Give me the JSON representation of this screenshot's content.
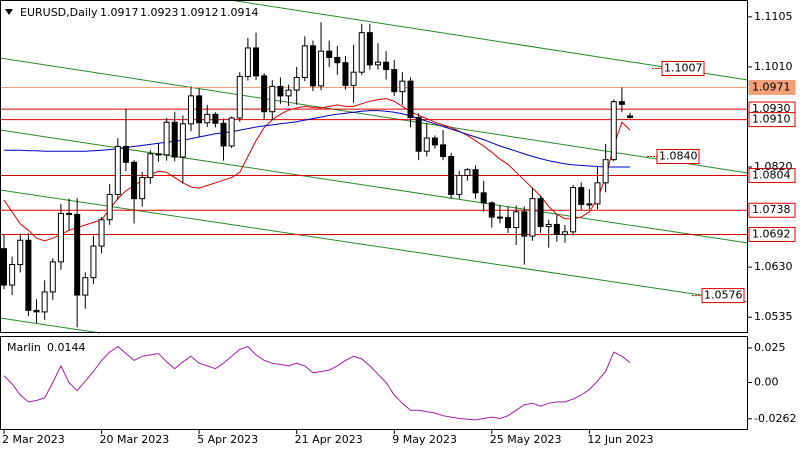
{
  "chart_data": [
    {
      "type": "candlestick",
      "symbol": "EURUSD,Daily",
      "categories": [
        "2 Mar 2023",
        null,
        null,
        null,
        null,
        null,
        null,
        null,
        null,
        null,
        null,
        null,
        "20 Mar 2023",
        null,
        null,
        null,
        null,
        null,
        null,
        null,
        null,
        null,
        null,
        null,
        "5 Apr 2023",
        null,
        null,
        null,
        null,
        null,
        null,
        null,
        null,
        null,
        null,
        null,
        "21 Apr 2023",
        null,
        null,
        null,
        null,
        null,
        null,
        null,
        null,
        null,
        null,
        null,
        "9 May 2023",
        null,
        null,
        null,
        null,
        null,
        null,
        null,
        null,
        null,
        null,
        null,
        "25 May 2023",
        null,
        null,
        null,
        null,
        null,
        null,
        null,
        null,
        null,
        null,
        null,
        "12 Jun 2023",
        null,
        null,
        null,
        null,
        null
      ],
      "open": [
        1.0665,
        1.0596,
        1.0635,
        1.0681,
        1.0548,
        1.0545,
        1.0583,
        1.064,
        1.0732,
        1.073,
        1.0577,
        1.061,
        1.067,
        1.072,
        1.0768,
        1.0859,
        1.0829,
        1.076,
        1.08,
        1.0845,
        1.0843,
        1.0905,
        1.0839,
        1.0902,
        1.0955,
        1.0904,
        1.092,
        1.0903,
        1.086,
        1.0913,
        1.0992,
        1.1046,
        1.0993,
        1.0925,
        1.0973,
        1.0955,
        1.0966,
        1.099,
        1.105,
        1.0974,
        1.104,
        1.1028,
        1.1018,
        1.0975,
        1.1,
        1.1075,
        1.1014,
        1.1019,
        1.1005,
        1.0963,
        1.0983,
        1.0914,
        1.085,
        1.0875,
        1.0862,
        1.084,
        1.0768,
        1.0804,
        1.0815,
        1.0771,
        1.0752,
        1.0725,
        1.0724,
        1.0705,
        1.0735,
        1.0689,
        1.076,
        1.0707,
        1.0711,
        1.0692,
        1.0697,
        1.0781,
        1.0749,
        1.075,
        1.079,
        1.0834,
        1.0944,
        1.0917
      ],
      "high": [
        1.0691,
        1.065,
        1.0694,
        1.0695,
        1.0569,
        1.0605,
        1.0647,
        1.075,
        1.076,
        1.0761,
        1.062,
        1.069,
        1.0725,
        1.0788,
        1.0875,
        1.093,
        1.0833,
        1.0811,
        1.0852,
        1.0865,
        1.0913,
        1.0925,
        1.0918,
        1.0973,
        1.0969,
        1.0938,
        1.0924,
        1.0912,
        1.0916,
        1.1,
        1.1065,
        1.1075,
        1.0998,
        1.0985,
        1.099,
        1.0976,
        1.101,
        1.1068,
        1.106,
        1.1095,
        1.106,
        1.105,
        1.1031,
        1.1052,
        1.1092,
        1.1092,
        1.1055,
        1.104,
        1.1023,
        1.1,
        1.099,
        1.0922,
        1.0904,
        1.088,
        1.089,
        1.0847,
        1.0813,
        1.0818,
        1.0823,
        1.0794,
        1.0755,
        1.0748,
        1.0745,
        1.0747,
        1.0745,
        1.078,
        1.0765,
        1.072,
        1.073,
        1.071,
        1.0786,
        1.0791,
        1.0778,
        1.0822,
        1.0864,
        1.0948,
        1.0971,
        1.0923
      ],
      "low": [
        1.0588,
        1.0577,
        1.062,
        1.0537,
        1.0524,
        1.053,
        1.0568,
        1.0625,
        1.07,
        1.0516,
        1.0551,
        1.0598,
        1.0656,
        1.071,
        1.0758,
        1.0812,
        1.0713,
        1.0745,
        1.0788,
        1.083,
        1.0832,
        1.0831,
        1.0789,
        1.0888,
        1.0878,
        1.0896,
        1.0895,
        1.0832,
        1.0856,
        1.0906,
        1.0984,
        1.0985,
        1.091,
        1.0909,
        1.094,
        1.0936,
        1.0938,
        1.0983,
        1.0964,
        1.0966,
        1.101,
        1.0995,
        1.0967,
        1.0942,
        1.0994,
        1.1005,
        1.1005,
        1.0986,
        1.0955,
        1.0938,
        1.0896,
        1.0833,
        1.084,
        1.0855,
        1.0833,
        1.076,
        1.076,
        1.0794,
        1.076,
        1.0735,
        1.0705,
        1.0713,
        1.0695,
        1.0672,
        1.0635,
        1.068,
        1.0695,
        1.0667,
        1.0678,
        1.0676,
        1.069,
        1.0739,
        1.074,
        1.074,
        1.0772,
        1.0831,
        1.0924,
        1.0912
      ],
      "close": [
        1.0596,
        1.0635,
        1.0681,
        1.0548,
        1.0545,
        1.0583,
        1.064,
        1.0732,
        1.073,
        1.0577,
        1.061,
        1.067,
        1.072,
        1.0768,
        1.0859,
        1.0829,
        1.076,
        1.08,
        1.0845,
        1.0843,
        1.0905,
        1.0839,
        1.0902,
        1.0955,
        1.0904,
        1.092,
        1.0903,
        1.086,
        1.0913,
        1.0992,
        1.1046,
        1.0993,
        1.0925,
        1.0973,
        1.0955,
        1.0966,
        1.099,
        1.105,
        1.0974,
        1.104,
        1.1028,
        1.1018,
        1.0975,
        1.1,
        1.1075,
        1.1014,
        1.1019,
        1.1005,
        1.0963,
        1.0983,
        1.0914,
        1.085,
        1.0875,
        1.0862,
        1.084,
        1.0768,
        1.0804,
        1.0815,
        1.0771,
        1.0752,
        1.0725,
        1.0724,
        1.0705,
        1.0735,
        1.0689,
        1.076,
        1.0707,
        1.0711,
        1.0692,
        1.0697,
        1.0781,
        1.0749,
        1.075,
        1.079,
        1.0834,
        1.0944,
        1.0939,
        1.0914
      ],
      "lines": [
        {
          "color": "#e00000",
          "values": [
            1.0757,
            1.0735,
            1.0712,
            1.07,
            1.0685,
            1.068,
            1.0685,
            1.0692,
            1.07,
            1.0705,
            1.071,
            1.0715,
            1.072,
            1.074,
            1.076,
            1.0775,
            1.0785,
            1.0795,
            1.0805,
            1.0812,
            1.081,
            1.08,
            1.079,
            1.0782,
            1.078,
            1.0785,
            1.079,
            1.0795,
            1.08,
            1.081,
            1.084,
            1.087,
            1.0895,
            1.091,
            1.092,
            1.0928,
            1.0932,
            1.0935,
            1.0933,
            1.0932,
            1.0935,
            1.0938,
            1.0935,
            1.0935,
            1.094,
            1.0945,
            1.0948,
            1.095,
            1.0945,
            1.0935,
            1.0925,
            1.0918,
            1.0912,
            1.0905,
            1.09,
            1.0895,
            1.0888,
            1.088,
            1.087,
            1.086,
            1.0848,
            1.0835,
            1.0825,
            1.081,
            1.0795,
            1.078,
            1.0765,
            1.0745,
            1.073,
            1.0722,
            1.0722,
            1.0725,
            1.0735,
            1.076,
            1.08,
            1.086,
            1.0905,
            1.089
          ]
        },
        {
          "color": "#0000c0",
          "values": [
            1.0852,
            1.0852,
            1.0852,
            1.0851,
            1.0851,
            1.085,
            1.085,
            1.085,
            1.085,
            1.085,
            1.085,
            1.0851,
            1.0852,
            1.0853,
            1.0855,
            1.0857,
            1.0859,
            1.0861,
            1.0863,
            1.0865,
            1.0867,
            1.0869,
            1.0871,
            1.0874,
            1.0877,
            1.088,
            1.0883,
            1.0885,
            1.0887,
            1.089,
            1.0893,
            1.0896,
            1.0898,
            1.09,
            1.0902,
            1.0904,
            1.0906,
            1.0909,
            1.0912,
            1.0915,
            1.0918,
            1.092,
            1.0922,
            1.0924,
            1.0926,
            1.0927,
            1.0927,
            1.0926,
            1.0924,
            1.0921,
            1.0917,
            1.0912,
            1.0907,
            1.0902,
            1.0897,
            1.0892,
            1.0887,
            1.0882,
            1.0877,
            1.0872,
            1.0866,
            1.086,
            1.0855,
            1.085,
            1.0845,
            1.084,
            1.0836,
            1.0832,
            1.0829,
            1.0826,
            1.0824,
            1.0823,
            1.0822,
            1.0821,
            1.082,
            1.082,
            1.082,
            1.082
          ]
        }
      ],
      "levels": [
        {
          "value": 1.1007,
          "label": "1.1007",
          "color": "#e00000",
          "line": false
        },
        {
          "value": 1.0971,
          "label": "1.0971",
          "color": "#f4a07a",
          "line": true
        },
        {
          "value": 1.093,
          "label": "1.0930",
          "color": "#e00000",
          "line": true
        },
        {
          "value": 1.091,
          "label": "1.0910",
          "color": "#e00000",
          "line": true
        },
        {
          "value": 1.084,
          "label": "1.0840",
          "color": "#e00000",
          "line": false
        },
        {
          "value": 1.0804,
          "label": "1.0804",
          "color": "#e00000",
          "line": true
        },
        {
          "value": 1.0738,
          "label": "1.0738",
          "color": "#e00000",
          "line": true
        },
        {
          "value": 1.0692,
          "label": "1.0692",
          "color": "#e00000",
          "line": true
        },
        {
          "value": 1.0576,
          "label": "1.0576",
          "color": "#e00000",
          "line": false
        }
      ],
      "ylim": [
        1.0505,
        1.1137
      ],
      "yticks": [
        1.1105,
        {
          "value": 1.101,
          "label": "1.1010"
        },
        {
          "value": 1.082,
          "label": "1.0820"
        },
        {
          "value": 1.063,
          "label": "1.0630"
        },
        1.0535
      ]
    },
    {
      "type": "line",
      "series": [
        {
          "name": "Marlin",
          "color": "#a020a0",
          "values": [
            0.005,
            -0.001,
            -0.009,
            -0.014,
            -0.013,
            -0.011,
            0.0,
            0.012,
            0.0,
            -0.006,
            0.001,
            0.008,
            0.016,
            0.022,
            0.026,
            0.021,
            0.016,
            0.019,
            0.02,
            0.021,
            0.015,
            0.01,
            0.015,
            0.019,
            0.014,
            0.012,
            0.01,
            0.014,
            0.019,
            0.024,
            0.026,
            0.02,
            0.016,
            0.014,
            0.013,
            0.012,
            0.014,
            0.012,
            0.007,
            0.008,
            0.009,
            0.012,
            0.016,
            0.019,
            0.017,
            0.012,
            0.006,
            0.0,
            -0.009,
            -0.015,
            -0.02,
            -0.02,
            -0.021,
            -0.022,
            -0.024,
            -0.025,
            -0.026,
            -0.0265,
            -0.027,
            -0.026,
            -0.025,
            -0.026,
            -0.024,
            -0.02,
            -0.016,
            -0.015,
            -0.017,
            -0.015,
            -0.014,
            -0.014,
            -0.012,
            -0.009,
            -0.005,
            0.001,
            0.008,
            0.022,
            0.019,
            0.0144
          ]
        }
      ],
      "ylim": [
        -0.0343,
        0.0329
      ],
      "yticks": [
        0.025,
        {
          "value": 0,
          "label": "0.00"
        },
        -0.0262
      ]
    }
  ]
}
